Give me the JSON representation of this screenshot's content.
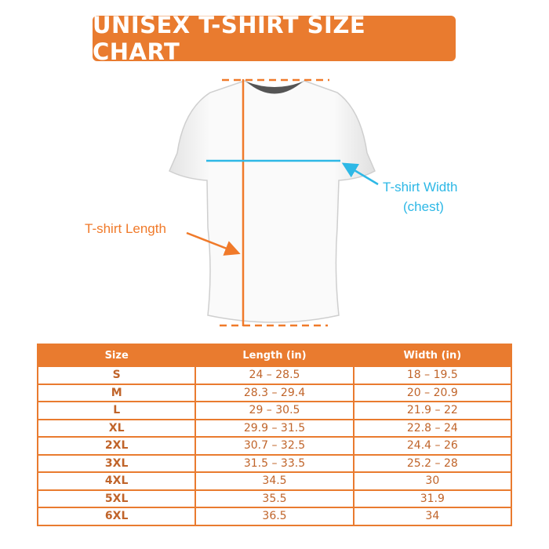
{
  "title": "UNISEX T-SHIRT SIZE CHART",
  "colors": {
    "accent": "#E97B2F",
    "width_line": "#2EB8E6",
    "table_text": "#C0642A"
  },
  "diagram": {
    "length_label": "T-shirt Length",
    "width_label_line1": "T-shirt Width",
    "width_label_line2": "(chest)"
  },
  "table": {
    "headers": [
      "Size",
      "Length (in)",
      "Width (in)"
    ],
    "rows": [
      [
        "S",
        "24 – 28.5",
        "18 – 19.5"
      ],
      [
        "M",
        "28.3 – 29.4",
        "20 – 20.9"
      ],
      [
        "L",
        "29 – 30.5",
        "21.9 – 22"
      ],
      [
        "XL",
        "29.9 – 31.5",
        "22.8 – 24"
      ],
      [
        "2XL",
        "30.7 – 32.5",
        "24.4 – 26"
      ],
      [
        "3XL",
        "31.5 – 33.5",
        "25.2 – 28"
      ],
      [
        "4XL",
        "34.5",
        "30"
      ],
      [
        "5XL",
        "35.5",
        "31.9"
      ],
      [
        "6XL",
        "36.5",
        "34"
      ]
    ]
  }
}
